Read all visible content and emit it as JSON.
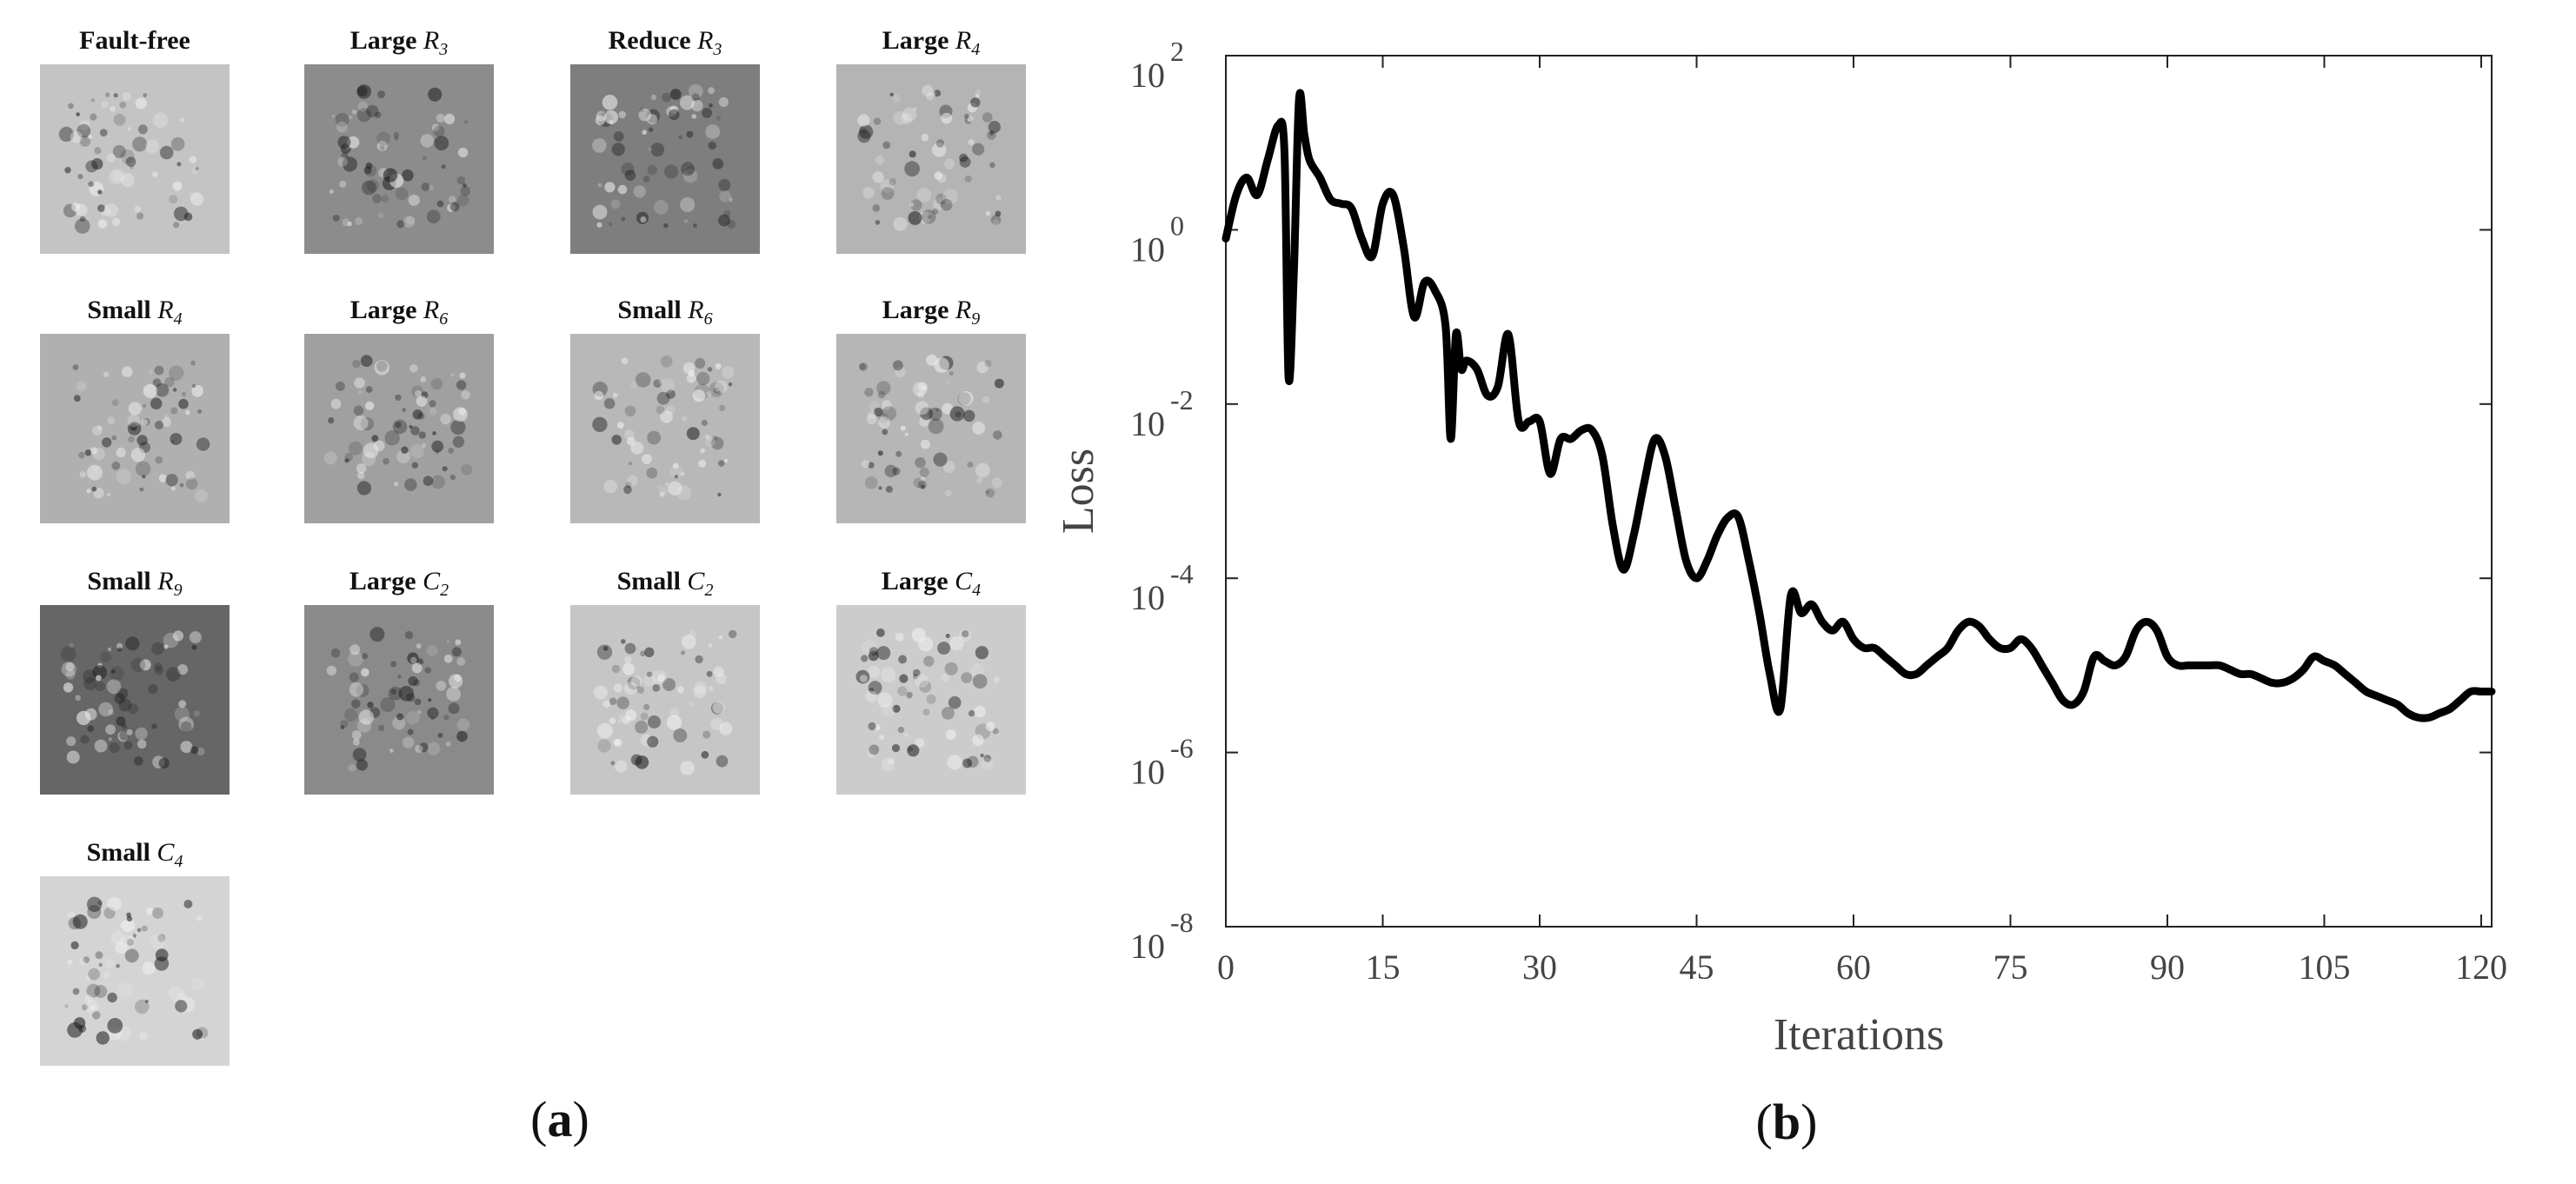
{
  "panel_a": {
    "caption_open": "(",
    "caption_letter": "a",
    "caption_close": ")",
    "tiles": [
      {
        "prefix": "Fault-free",
        "sym": "",
        "sub": "",
        "bg": "#c4c4c4",
        "tone": "light"
      },
      {
        "prefix": "Large ",
        "sym": "R",
        "sub": "3",
        "bg": "#8c8c8c",
        "tone": "mid"
      },
      {
        "prefix": "Reduce ",
        "sym": "R",
        "sub": "3",
        "bg": "#7e7e7e",
        "tone": "dark"
      },
      {
        "prefix": "Large ",
        "sym": "R",
        "sub": "4",
        "bg": "#b4b4b4",
        "tone": "light"
      },
      {
        "prefix": "Small ",
        "sym": "R",
        "sub": "4",
        "bg": "#b0b0b0",
        "tone": "light"
      },
      {
        "prefix": "Large ",
        "sym": "R",
        "sub": "6",
        "bg": "#a0a0a0",
        "tone": "mid"
      },
      {
        "prefix": "Small ",
        "sym": "R",
        "sub": "6",
        "bg": "#b8b8b8",
        "tone": "light"
      },
      {
        "prefix": "Large ",
        "sym": "R",
        "sub": "9",
        "bg": "#b6b6b6",
        "tone": "light"
      },
      {
        "prefix": "Small ",
        "sym": "R",
        "sub": "9",
        "bg": "#666666",
        "tone": "dark"
      },
      {
        "prefix": "Large ",
        "sym": "C",
        "sub": "2",
        "bg": "#8a8a8a",
        "tone": "mid"
      },
      {
        "prefix": "Small ",
        "sym": "C",
        "sub": "2",
        "bg": "#c6c6c6",
        "tone": "light"
      },
      {
        "prefix": "Large ",
        "sym": "C",
        "sub": "4",
        "bg": "#cccccc",
        "tone": "light"
      },
      {
        "prefix": "Small ",
        "sym": "C",
        "sub": "4",
        "bg": "#d4d4d4",
        "tone": "light"
      }
    ]
  },
  "panel_b": {
    "caption_open": "(",
    "caption_letter": "b",
    "caption_close": ")"
  },
  "chart_data": {
    "type": "line",
    "title": "",
    "xlabel": "Iterations",
    "ylabel": "Loss",
    "xlim": [
      0,
      121
    ],
    "ylim_log10": [
      -8,
      2
    ],
    "yscale": "log",
    "grid": false,
    "x_ticks": [
      0,
      15,
      30,
      45,
      60,
      75,
      90,
      105,
      120
    ],
    "y_ticks": [
      {
        "base": "10",
        "exp": "2",
        "pos": 2
      },
      {
        "base": "10",
        "exp": "0",
        "pos": 0
      },
      {
        "base": "10",
        "exp": "-2",
        "pos": -2
      },
      {
        "base": "10",
        "exp": "-4",
        "pos": -4
      },
      {
        "base": "10",
        "exp": "-6",
        "pos": -6
      },
      {
        "base": "10",
        "exp": "-8",
        "pos": -8
      }
    ],
    "line_color": "#000000",
    "series": [
      {
        "x": [
          0,
          1,
          2,
          3,
          4,
          5,
          5.6,
          6,
          6.5,
          7,
          7.5,
          8,
          9,
          10,
          11,
          12,
          13,
          14,
          15,
          16,
          17,
          18,
          19,
          20,
          21,
          21.5,
          22,
          22.5,
          23,
          24,
          25,
          26,
          27,
          28,
          29,
          30,
          31,
          32,
          33,
          34,
          35,
          36,
          37,
          38,
          39,
          40,
          41,
          42,
          43,
          44,
          45,
          46,
          47,
          48,
          49,
          50,
          51,
          52,
          53,
          54,
          55,
          56,
          57,
          58,
          59,
          60,
          61,
          62,
          63,
          64,
          65,
          66,
          67,
          68,
          69,
          70,
          71,
          72,
          73,
          74,
          75,
          76,
          77,
          78,
          79,
          80,
          81,
          82,
          83,
          84,
          85,
          86,
          87,
          88,
          89,
          90,
          91,
          92,
          93,
          94,
          95,
          96,
          97,
          98,
          99,
          100,
          101,
          102,
          103,
          104,
          105,
          106,
          107,
          108,
          109,
          110,
          111,
          112,
          113,
          114,
          115,
          116,
          117,
          118,
          119,
          120,
          121
        ],
        "log10_y": [
          -0.1,
          0.4,
          0.6,
          0.4,
          0.8,
          1.2,
          0.9,
          -1.7,
          -0.5,
          1.5,
          1.1,
          0.8,
          0.6,
          0.35,
          0.3,
          0.25,
          -0.1,
          -0.3,
          0.3,
          0.4,
          -0.2,
          -1.0,
          -0.6,
          -0.7,
          -1.1,
          -2.4,
          -1.2,
          -1.6,
          -1.5,
          -1.6,
          -1.9,
          -1.8,
          -1.2,
          -2.2,
          -2.2,
          -2.2,
          -2.8,
          -2.4,
          -2.4,
          -2.3,
          -2.3,
          -2.6,
          -3.4,
          -3.9,
          -3.5,
          -2.9,
          -2.4,
          -2.6,
          -3.2,
          -3.8,
          -4.0,
          -3.8,
          -3.5,
          -3.3,
          -3.3,
          -3.8,
          -4.4,
          -5.1,
          -5.5,
          -4.2,
          -4.4,
          -4.3,
          -4.5,
          -4.6,
          -4.5,
          -4.7,
          -4.8,
          -4.8,
          -4.9,
          -5.0,
          -5.1,
          -5.1,
          -5.0,
          -4.9,
          -4.8,
          -4.6,
          -4.5,
          -4.55,
          -4.7,
          -4.8,
          -4.8,
          -4.7,
          -4.8,
          -5.0,
          -5.2,
          -5.4,
          -5.45,
          -5.3,
          -4.9,
          -4.95,
          -5.0,
          -4.9,
          -4.6,
          -4.5,
          -4.6,
          -4.9,
          -5.0,
          -5.0,
          -5.0,
          -5.0,
          -5.0,
          -5.05,
          -5.1,
          -5.1,
          -5.15,
          -5.2,
          -5.2,
          -5.15,
          -5.05,
          -4.9,
          -4.95,
          -5.0,
          -5.1,
          -5.2,
          -5.3,
          -5.35,
          -5.4,
          -5.45,
          -5.55,
          -5.6,
          -5.6,
          -5.55,
          -5.5,
          -5.4,
          -5.3,
          -5.3,
          -5.3
        ]
      }
    ]
  }
}
